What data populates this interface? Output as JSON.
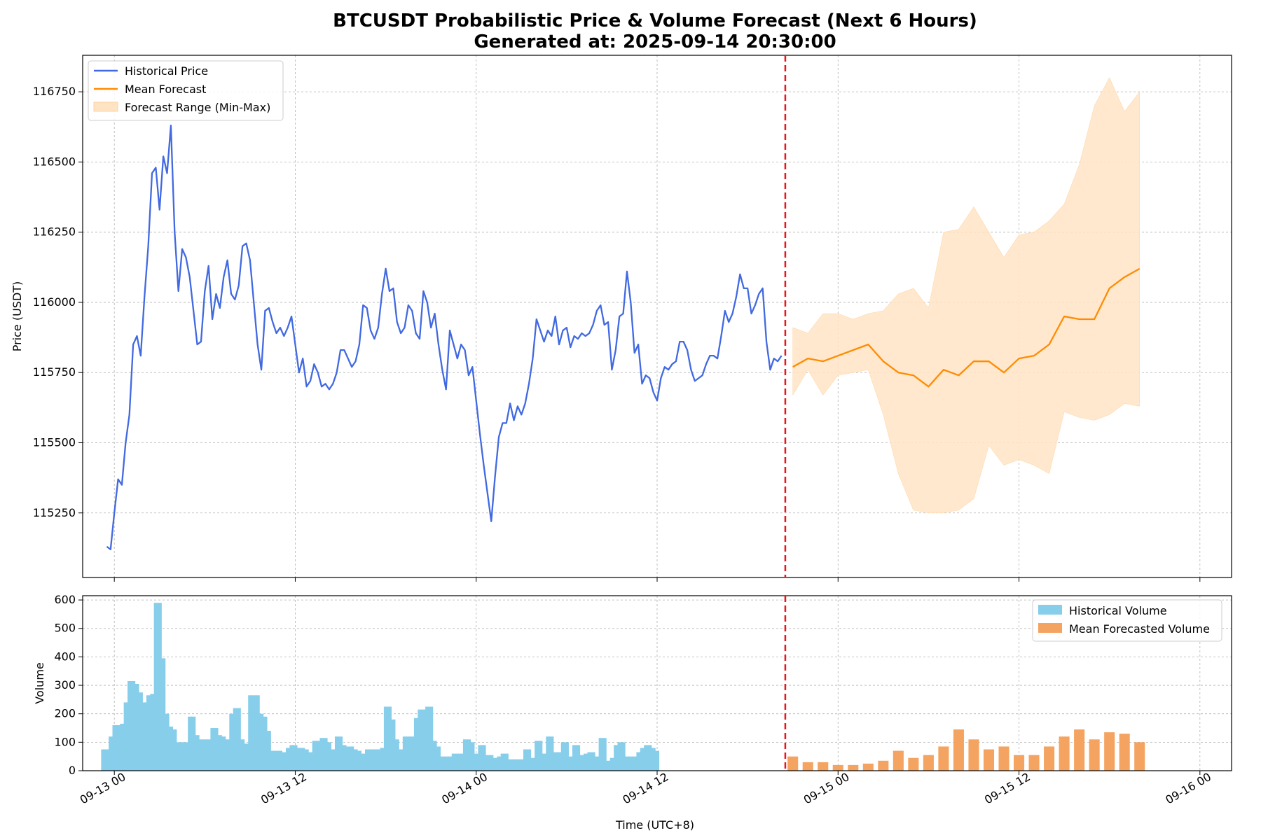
{
  "chart_data": [
    {
      "type": "line",
      "title": "BTCUSDT Probabilistic Price & Volume Forecast (Next 6 Hours)",
      "subtitle": "Generated at: 2025-09-14 20:30:00",
      "xlabel": "",
      "ylabel": "Price (USDT)",
      "ylim": [
        115020,
        116880
      ],
      "yticks": [
        115250,
        115500,
        115750,
        116000,
        116250,
        116500,
        116750
      ],
      "xlim_hours": [
        -2.1,
        74.1
      ],
      "x_origin": "2025-09-13 00:00",
      "x_unit": "hours",
      "xticks": [
        0,
        12,
        24,
        36,
        48,
        60,
        72
      ],
      "xtick_labels": [
        "09-13 00",
        "09-13 12",
        "09-14 00",
        "09-14 12",
        "09-15 00",
        "09-15 12",
        "09-16 00"
      ],
      "forecast_start_hours": 44.5,
      "grid": true,
      "legend_position": "top-left",
      "series": [
        {
          "name": "Historical Price",
          "color": "#4169e1",
          "x_step_hours": 0.25,
          "x_start_hours": -0.5,
          "values": [
            115130,
            115120,
            115250,
            115370,
            115350,
            115500,
            115600,
            115850,
            115880,
            115810,
            116020,
            116200,
            116460,
            116480,
            116330,
            116520,
            116460,
            116630,
            116250,
            116040,
            116190,
            116160,
            116090,
            115970,
            115850,
            115860,
            116040,
            116130,
            115940,
            116030,
            115980,
            116090,
            116150,
            116030,
            116010,
            116060,
            116200,
            116210,
            116150,
            116000,
            115850,
            115760,
            115970,
            115980,
            115930,
            115890,
            115910,
            115880,
            115910,
            115950,
            115850,
            115750,
            115800,
            115700,
            115720,
            115780,
            115750,
            115700,
            115710,
            115690,
            115710,
            115750,
            115830,
            115830,
            115800,
            115770,
            115790,
            115850,
            115990,
            115980,
            115900,
            115870,
            115910,
            116030,
            116120,
            116040,
            116050,
            115930,
            115890,
            115910,
            115990,
            115970,
            115890,
            115870,
            116040,
            116000,
            115910,
            115960,
            115850,
            115760,
            115690,
            115900,
            115850,
            115800,
            115850,
            115830,
            115740,
            115770,
            115650,
            115530,
            115420,
            115320,
            115220,
            115380,
            115520,
            115570,
            115570,
            115640,
            115580,
            115630,
            115600,
            115640,
            115710,
            115800,
            115940,
            115900,
            115860,
            115900,
            115880,
            115950,
            115850,
            115900,
            115910,
            115840,
            115880,
            115870,
            115890,
            115880,
            115890,
            115920,
            115970,
            115990,
            115920,
            115930,
            115760,
            115830,
            115950,
            115960,
            116110,
            116000,
            115820,
            115850,
            115710,
            115740,
            115730,
            115680,
            115650,
            115730,
            115770,
            115760,
            115780,
            115790,
            115860,
            115860,
            115830,
            115760,
            115720,
            115730,
            115740,
            115780,
            115810,
            115810,
            115800,
            115880,
            115970,
            115930,
            115960,
            116020,
            116100,
            116050,
            116050,
            115960,
            115990,
            116030,
            116050,
            115860,
            115760,
            115800,
            115790,
            115810
          ]
        },
        {
          "name": "Mean Forecast",
          "color": "#ff8c00",
          "x_step_hours": 1,
          "x_start_hours": 45,
          "values": [
            115770,
            115800,
            115790,
            115810,
            115830,
            115850,
            115790,
            115750,
            115740,
            115700,
            115760,
            115740,
            115790,
            115790,
            115750,
            115800,
            115810,
            115850,
            115950,
            115940,
            115940,
            116050,
            116090,
            116120
          ]
        },
        {
          "name": "Forecast Range (Min-Max)",
          "color": "#ffe4c4",
          "x_step_hours": 1,
          "x_start_hours": 45,
          "min": [
            115670,
            115760,
            115670,
            115740,
            115750,
            115760,
            115600,
            115390,
            115260,
            115250,
            115250,
            115260,
            115300,
            115490,
            115420,
            115440,
            115420,
            115390,
            115610,
            115590,
            115580,
            115600,
            115640,
            115630
          ],
          "max": [
            115910,
            115890,
            115960,
            115960,
            115940,
            115960,
            115970,
            116030,
            116050,
            115980,
            116250,
            116260,
            116340,
            116250,
            116160,
            116240,
            116250,
            116290,
            116350,
            116490,
            116700,
            116800,
            116680,
            116750
          ]
        }
      ]
    },
    {
      "type": "bar",
      "xlabel": "Time (UTC+8)",
      "ylabel": "Volume",
      "ylim": [
        0,
        615
      ],
      "yticks": [
        0,
        100,
        200,
        300,
        400,
        500,
        600
      ],
      "xlim_hours": [
        -2.1,
        74.1
      ],
      "xticks": [
        0,
        12,
        24,
        36,
        48,
        60,
        72
      ],
      "xtick_labels": [
        "09-13 00",
        "09-13 12",
        "09-14 00",
        "09-14 12",
        "09-15 00",
        "09-15 12",
        "09-16 00"
      ],
      "grid": true,
      "legend_position": "top-right",
      "series": [
        {
          "name": "Historical Volume",
          "color": "#87ceeb",
          "x_step_hours": 0.25,
          "x_start_hours": -0.75,
          "values": [
            75,
            75,
            120,
            160,
            160,
            165,
            240,
            315,
            315,
            305,
            275,
            240,
            265,
            270,
            590,
            590,
            395,
            200,
            155,
            145,
            100,
            100,
            100,
            190,
            190,
            125,
            110,
            110,
            110,
            150,
            150,
            125,
            120,
            110,
            200,
            220,
            220,
            110,
            95,
            265,
            265,
            265,
            200,
            190,
            140,
            70,
            70,
            70,
            65,
            80,
            90,
            90,
            80,
            80,
            75,
            65,
            105,
            105,
            115,
            115,
            100,
            75,
            120,
            120,
            90,
            85,
            85,
            75,
            70,
            60,
            75,
            75,
            75,
            75,
            80,
            225,
            225,
            180,
            110,
            75,
            120,
            120,
            120,
            185,
            215,
            215,
            225,
            225,
            105,
            85,
            50,
            50,
            50,
            60,
            60,
            60,
            110,
            110,
            100,
            60,
            90,
            90,
            55,
            55,
            45,
            50,
            60,
            60,
            40,
            40,
            40,
            40,
            75,
            75,
            45,
            105,
            105,
            60,
            120,
            120,
            65,
            65,
            100,
            100,
            50,
            90,
            90,
            55,
            60,
            65,
            65,
            50,
            115,
            115,
            35,
            45,
            90,
            100,
            100,
            50,
            50,
            50,
            65,
            80,
            90,
            90,
            80,
            70
          ]
        },
        {
          "name": "Mean Forecasted Volume",
          "color": "#f4a460",
          "x_step_hours": 1,
          "x_start_hours": 45,
          "values": [
            50,
            30,
            30,
            20,
            20,
            25,
            35,
            70,
            45,
            55,
            85,
            145,
            110,
            75,
            85,
            55,
            55,
            85,
            120,
            145,
            110,
            135,
            130,
            100
          ]
        }
      ]
    }
  ]
}
